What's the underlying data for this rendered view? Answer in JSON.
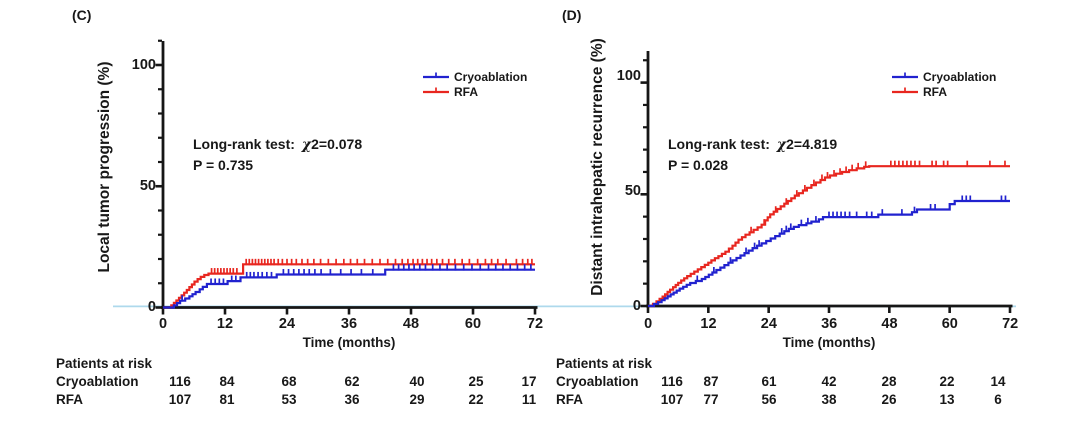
{
  "figure": {
    "colors": {
      "cryoablation": "#2122cf",
      "rfa": "#e8261f",
      "axis": "#161616",
      "baseline_highlight": "#aed9ec",
      "background": "#ffffff"
    }
  },
  "chart_data": [
    {
      "type": "line",
      "subtype": "kaplan-meier-step",
      "panel_letter": "(C)",
      "ylabel": "Local tumor progression (%)",
      "xlabel": "Time (months)",
      "x_tick_labels": [
        "0",
        "12",
        "24",
        "36",
        "48",
        "60",
        "72"
      ],
      "y_tick_labels": [
        "0",
        "50",
        "100"
      ],
      "xlim": [
        0,
        72
      ],
      "ylim": [
        0,
        110
      ],
      "grid": "off",
      "legend_position": "upper right",
      "stats": {
        "test_label": "Long-rank test:",
        "chi_symbol": "χ",
        "chi_value": "2=0.078",
        "p_value": "P = 0.735"
      },
      "series": [
        {
          "name": "Cryoablation",
          "color": "#2122cf",
          "steps": [
            [
              0,
              0
            ],
            [
              2.1,
              0.9
            ],
            [
              2.7,
              1.8
            ],
            [
              3.3,
              2.8
            ],
            [
              4.3,
              3.7
            ],
            [
              5.1,
              4.6
            ],
            [
              5.7,
              5.5
            ],
            [
              6.3,
              6.4
            ],
            [
              7.1,
              7.5
            ],
            [
              7.7,
              8.5
            ],
            [
              8.5,
              9.7
            ],
            [
              12.5,
              10.9
            ],
            [
              15,
              12.4
            ],
            [
              22,
              13.6
            ],
            [
              43,
              15.6
            ],
            [
              72,
              15.6
            ]
          ],
          "censor_times": [
            3.7,
            9.3,
            10.1,
            10.9,
            11.7,
            13.3,
            14.1,
            16.2,
            16.9,
            17.6,
            18.4,
            19.2,
            20.1,
            21,
            23.3,
            24.3,
            25.3,
            26.3,
            27.3,
            28.3,
            29.4,
            30.6,
            32.4,
            34.4,
            36.4,
            38.4,
            40.6,
            44.6,
            45.6,
            46.6,
            47.6,
            48.6,
            49.7,
            50.8,
            52.2,
            53.6,
            55,
            56.6,
            58.2,
            59.8,
            61.4,
            63,
            64.4,
            65.8,
            67.2,
            68.6,
            70,
            71.2
          ]
        },
        {
          "name": "RFA",
          "color": "#e8261f",
          "steps": [
            [
              0,
              0
            ],
            [
              1.6,
              0.9
            ],
            [
              2.1,
              1.9
            ],
            [
              2.6,
              2.9
            ],
            [
              3.1,
              4
            ],
            [
              3.6,
              5
            ],
            [
              4.1,
              6.1
            ],
            [
              4.6,
              7.2
            ],
            [
              5.1,
              8.4
            ],
            [
              5.6,
              9.5
            ],
            [
              6.1,
              10.7
            ],
            [
              6.7,
              11.7
            ],
            [
              7.3,
              12.6
            ],
            [
              8,
              13.4
            ],
            [
              8.8,
              14
            ],
            [
              15.5,
              17.8
            ],
            [
              72,
              17.8
            ]
          ],
          "censor_times": [
            9.4,
            10,
            10.6,
            11.2,
            11.8,
            12.4,
            13,
            13.6,
            14.3,
            16.1,
            16.7,
            17.3,
            17.9,
            18.5,
            19.1,
            19.7,
            20.3,
            20.9,
            21.5,
            22.3,
            23.1,
            24,
            24.9,
            25.8,
            26.9,
            28,
            29.2,
            30.5,
            32,
            33.5,
            35,
            36.3,
            37.6,
            39,
            40.5,
            42,
            43.5,
            45,
            46.3,
            47.4,
            48.4,
            49.3,
            50.2,
            51.1,
            52,
            53,
            54.1,
            55.3,
            56.5,
            57.9,
            59.3,
            60.9,
            62.4,
            63.6,
            64.8,
            66.4,
            68.4,
            69.6,
            70.6,
            71.4
          ]
        }
      ],
      "at_risk": {
        "title": "Patients at risk",
        "rows": [
          {
            "label": "Cryoablation",
            "counts": [
              116,
              84,
              68,
              62,
              40,
              25,
              17
            ]
          },
          {
            "label": "RFA",
            "counts": [
              107,
              81,
              53,
              36,
              29,
              22,
              11
            ]
          }
        ]
      }
    },
    {
      "type": "line",
      "subtype": "kaplan-meier-step",
      "panel_letter": "(D)",
      "ylabel": "Distant intrahepatic recurrence (%)",
      "xlabel": "Time (months)",
      "x_tick_labels": [
        "0",
        "12",
        "24",
        "36",
        "48",
        "60",
        "72"
      ],
      "y_tick_labels": [
        "0",
        "50",
        "100"
      ],
      "xlim": [
        0,
        72
      ],
      "ylim": [
        0,
        110
      ],
      "grid": "off",
      "legend_position": "upper right",
      "stats": {
        "test_label": "Long-rank test:",
        "chi_symbol": "χ",
        "chi_value": "2=4.819",
        "p_value": "P = 0.028"
      },
      "series": [
        {
          "name": "Cryoablation",
          "color": "#2122cf",
          "steps": [
            [
              0,
              0
            ],
            [
              1.2,
              0.9
            ],
            [
              2,
              1.7
            ],
            [
              2.7,
              2.6
            ],
            [
              3.3,
              3.4
            ],
            [
              3.9,
              4.3
            ],
            [
              4.5,
              5.2
            ],
            [
              5.1,
              6
            ],
            [
              5.7,
              6.9
            ],
            [
              6.3,
              7.8
            ],
            [
              7,
              8.6
            ],
            [
              7.7,
              9.5
            ],
            [
              8.4,
              10.3
            ],
            [
              9.5,
              11.2
            ],
            [
              10.7,
              12.1
            ],
            [
              11.4,
              13
            ],
            [
              12.1,
              14
            ],
            [
              12.8,
              15
            ],
            [
              13.6,
              16.1
            ],
            [
              14.4,
              17.2
            ],
            [
              15.2,
              18.3
            ],
            [
              16,
              19.4
            ],
            [
              16.8,
              20.4
            ],
            [
              17.6,
              21.5
            ],
            [
              18.4,
              22.6
            ],
            [
              19.2,
              23.7
            ],
            [
              20,
              24.8
            ],
            [
              20.8,
              25.9
            ],
            [
              21.7,
              27
            ],
            [
              22.6,
              28
            ],
            [
              23.5,
              29.1
            ],
            [
              24.4,
              30.2
            ],
            [
              25.3,
              31.3
            ],
            [
              26.2,
              32.4
            ],
            [
              27.1,
              33.5
            ],
            [
              28,
              34.5
            ],
            [
              29,
              35.4
            ],
            [
              30,
              36.2
            ],
            [
              31.5,
              37
            ],
            [
              32.5,
              37.8
            ],
            [
              34,
              38.8
            ],
            [
              34.8,
              39.8
            ],
            [
              45.8,
              40.9
            ],
            [
              52.5,
              42
            ],
            [
              53.5,
              43.2
            ],
            [
              60,
              45.6
            ],
            [
              61,
              47
            ],
            [
              72,
              47
            ]
          ],
          "censor_times": [
            9.8,
            13.1,
            16.4,
            19.5,
            21.2,
            22.1,
            26.6,
            27.5,
            28.4,
            30.5,
            31.8,
            33.4,
            36,
            36.8,
            37.6,
            38.4,
            39.2,
            40.1,
            41.5,
            43.5,
            44.5,
            46.6,
            50.5,
            53,
            56.2,
            57.1,
            62.5,
            63.3,
            64.1,
            70.3,
            71.1
          ]
        },
        {
          "name": "RFA",
          "color": "#e8261f",
          "steps": [
            [
              0,
              0
            ],
            [
              1,
              1
            ],
            [
              1.7,
              2.1
            ],
            [
              2.3,
              3.2
            ],
            [
              2.9,
              4.2
            ],
            [
              3.4,
              5.2
            ],
            [
              3.9,
              6.3
            ],
            [
              4.4,
              7.3
            ],
            [
              5,
              8.4
            ],
            [
              5.5,
              9.4
            ],
            [
              6,
              10.4
            ],
            [
              6.6,
              11.4
            ],
            [
              7.2,
              12.4
            ],
            [
              7.8,
              13.4
            ],
            [
              8.5,
              14.4
            ],
            [
              9.2,
              15.4
            ],
            [
              9.9,
              16.4
            ],
            [
              10.6,
              17.4
            ],
            [
              11.3,
              18.4
            ],
            [
              12,
              19.4
            ],
            [
              12.6,
              20.4
            ],
            [
              13.3,
              21.4
            ],
            [
              14,
              22.3
            ],
            [
              14.7,
              23.3
            ],
            [
              15.4,
              24.3
            ],
            [
              16.1,
              25.7
            ],
            [
              16.8,
              27
            ],
            [
              17.4,
              28.4
            ],
            [
              18,
              29.7
            ],
            [
              18.7,
              30.8
            ],
            [
              19.4,
              31.9
            ],
            [
              20.2,
              33
            ],
            [
              21,
              34.1
            ],
            [
              21.8,
              35.2
            ],
            [
              22.6,
              36.4
            ],
            [
              23.3,
              38.3
            ],
            [
              23.8,
              39.7
            ],
            [
              24.3,
              41
            ],
            [
              25,
              42.2
            ],
            [
              25.7,
              43.4
            ],
            [
              26.4,
              44.6
            ],
            [
              27.1,
              45.8
            ],
            [
              27.8,
              47
            ],
            [
              28.5,
              48.2
            ],
            [
              29.2,
              49.4
            ],
            [
              30,
              50.5
            ],
            [
              30.8,
              51.7
            ],
            [
              31.6,
              52.9
            ],
            [
              32.5,
              54.1
            ],
            [
              33.4,
              55.3
            ],
            [
              34.3,
              56.4
            ],
            [
              35.2,
              57.5
            ],
            [
              36.2,
              58.4
            ],
            [
              37.4,
              59.2
            ],
            [
              38.6,
              60
            ],
            [
              40,
              60.8
            ],
            [
              41.5,
              61.6
            ],
            [
              43,
              62.3
            ],
            [
              44,
              62.6
            ],
            [
              72,
              62.6
            ]
          ],
          "censor_times": [
            20.5,
            23.1,
            25.4,
            27.5,
            29.6,
            31.2,
            33,
            34.6,
            35.7,
            37,
            38.2,
            39.4,
            40.6,
            41.8,
            43.3,
            48.3,
            49.1,
            49.9,
            50.7,
            51.5,
            52.3,
            53.1,
            54,
            56.5,
            57.3,
            58.8,
            59.6,
            63.5,
            68,
            71
          ]
        }
      ],
      "at_risk": {
        "title": "Patients at risk",
        "rows": [
          {
            "label": "Cryoablation",
            "counts": [
              116,
              87,
              61,
              42,
              28,
              22,
              14
            ]
          },
          {
            "label": "RFA",
            "counts": [
              107,
              77,
              56,
              38,
              26,
              13,
              6
            ]
          }
        ]
      }
    }
  ]
}
